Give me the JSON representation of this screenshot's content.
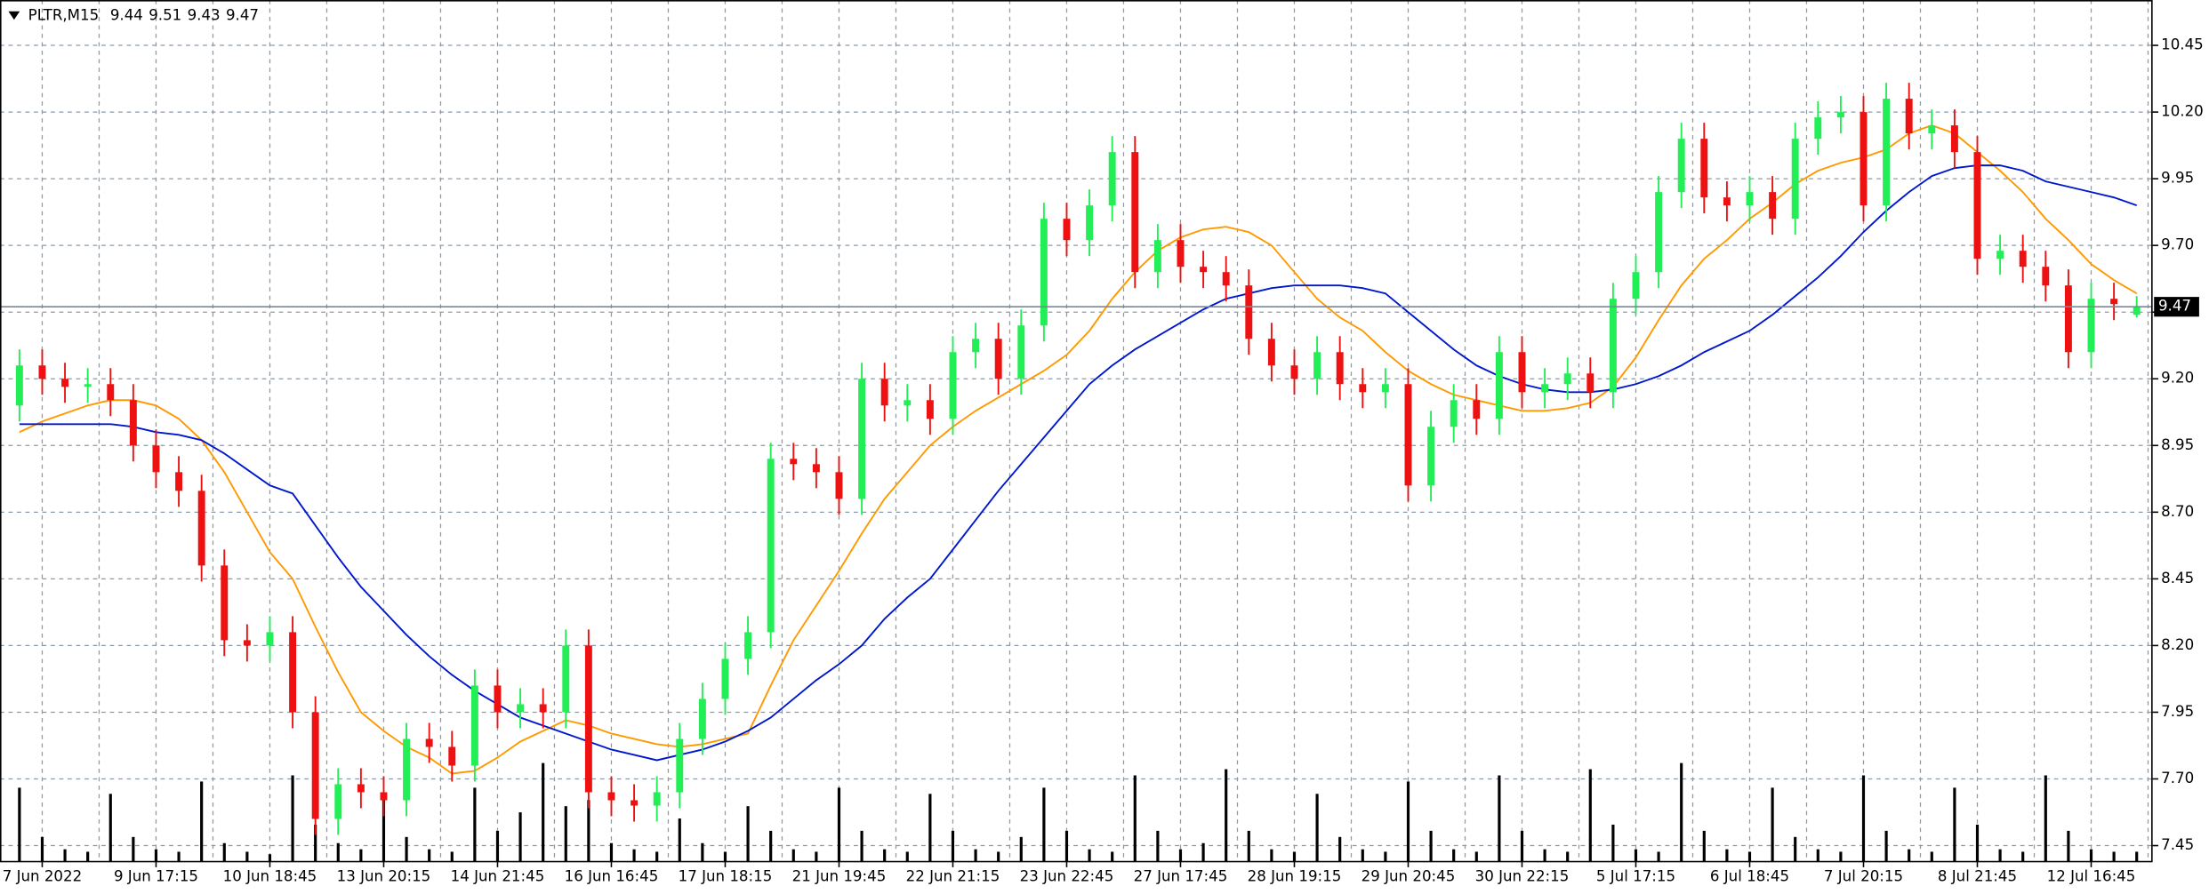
{
  "chart_data": {
    "type": "candlestick",
    "title": "PLTR,M15",
    "categories": [
      null,
      "7 Jun 2022",
      null,
      null,
      null,
      null,
      "9 Jun 17:15",
      null,
      null,
      null,
      null,
      "10 Jun 18:45",
      null,
      null,
      null,
      null,
      "13 Jun 20:15",
      null,
      null,
      null,
      null,
      "14 Jun 21:45",
      null,
      null,
      null,
      null,
      "16 Jun 16:45",
      null,
      null,
      null,
      null,
      "17 Jun 18:15",
      null,
      null,
      null,
      null,
      "21 Jun 19:45",
      null,
      null,
      null,
      null,
      "22 Jun 21:15",
      null,
      null,
      null,
      null,
      "23 Jun 22:45",
      null,
      null,
      null,
      null,
      "27 Jun 17:45",
      null,
      null,
      null,
      null,
      "28 Jun 19:15",
      null,
      null,
      null,
      null,
      "29 Jun 20:45",
      null,
      null,
      null,
      null,
      "30 Jun 22:15",
      null,
      null,
      null,
      null,
      "5 Jul 17:15",
      null,
      null,
      null,
      null,
      "6 Jul 18:45",
      null,
      null,
      null,
      null,
      "7 Jul 20:15",
      null,
      null,
      null,
      null,
      "8 Jul 21:45",
      null,
      null,
      null,
      null,
      "12 Jul 16:45",
      null,
      null
    ],
    "open": [
      9.1,
      9.25,
      9.2,
      9.17,
      9.18,
      9.12,
      8.95,
      8.85,
      8.78,
      8.5,
      8.22,
      8.2,
      8.25,
      7.95,
      7.55,
      7.68,
      7.65,
      7.62,
      7.85,
      7.82,
      7.75,
      8.05,
      7.95,
      7.98,
      7.95,
      8.2,
      7.65,
      7.62,
      7.6,
      7.65,
      7.85,
      8.0,
      8.15,
      8.25,
      8.9,
      8.88,
      8.85,
      8.75,
      9.2,
      9.1,
      9.12,
      9.05,
      9.3,
      9.35,
      9.2,
      9.4,
      9.8,
      9.72,
      9.85,
      10.05,
      9.6,
      9.72,
      9.62,
      9.6,
      9.55,
      9.35,
      9.25,
      9.2,
      9.3,
      9.18,
      9.15,
      9.18,
      8.8,
      9.02,
      9.12,
      9.05,
      9.3,
      9.15,
      9.18,
      9.22,
      9.15,
      9.5,
      9.6,
      9.9,
      10.1,
      9.88,
      9.85,
      9.9,
      9.8,
      10.1,
      10.18,
      10.2,
      9.85,
      10.25,
      10.12,
      10.15,
      10.05,
      9.65,
      9.68,
      9.62,
      9.55,
      9.3,
      9.5,
      9.44
    ],
    "high": [
      9.31,
      9.31,
      9.26,
      9.24,
      9.24,
      9.18,
      9.01,
      8.91,
      8.84,
      8.56,
      8.28,
      8.31,
      8.31,
      8.01,
      7.74,
      7.74,
      7.71,
      7.91,
      7.91,
      7.88,
      8.11,
      8.11,
      8.04,
      8.04,
      8.26,
      8.26,
      7.71,
      7.68,
      7.71,
      7.91,
      8.06,
      8.21,
      8.31,
      8.96,
      8.96,
      8.94,
      8.91,
      9.26,
      9.26,
      9.18,
      9.18,
      9.36,
      9.41,
      9.41,
      9.46,
      9.86,
      9.86,
      9.91,
      10.11,
      10.11,
      9.78,
      9.78,
      9.68,
      9.66,
      9.61,
      9.41,
      9.31,
      9.36,
      9.36,
      9.24,
      9.24,
      9.24,
      9.08,
      9.18,
      9.18,
      9.36,
      9.36,
      9.24,
      9.28,
      9.28,
      9.56,
      9.66,
      9.96,
      10.16,
      10.16,
      9.94,
      9.96,
      9.96,
      10.16,
      10.24,
      10.26,
      10.26,
      10.31,
      10.31,
      10.21,
      10.21,
      10.11,
      9.74,
      9.74,
      9.68,
      9.61,
      9.56,
      9.56,
      9.51
    ],
    "low": [
      9.04,
      9.14,
      9.11,
      9.11,
      9.06,
      8.89,
      8.79,
      8.72,
      8.44,
      8.16,
      8.14,
      8.14,
      7.89,
      7.49,
      7.49,
      7.59,
      7.56,
      7.56,
      7.76,
      7.69,
      7.69,
      7.89,
      7.89,
      7.89,
      7.89,
      7.59,
      7.56,
      7.54,
      7.54,
      7.59,
      7.79,
      7.94,
      8.09,
      8.19,
      8.82,
      8.79,
      8.69,
      8.69,
      9.04,
      9.04,
      8.99,
      8.99,
      9.24,
      9.14,
      9.14,
      9.34,
      9.66,
      9.66,
      9.79,
      9.54,
      9.54,
      9.56,
      9.54,
      9.49,
      9.29,
      9.19,
      9.14,
      9.14,
      9.12,
      9.09,
      9.09,
      8.74,
      8.74,
      8.96,
      8.99,
      8.99,
      9.09,
      9.09,
      9.12,
      9.09,
      9.09,
      9.44,
      9.54,
      9.84,
      9.82,
      9.79,
      9.79,
      9.74,
      9.74,
      10.04,
      10.12,
      9.79,
      9.79,
      10.06,
      10.06,
      9.99,
      9.59,
      9.59,
      9.56,
      9.49,
      9.24,
      9.24,
      9.42,
      9.43
    ],
    "close": [
      9.25,
      9.2,
      9.17,
      9.18,
      9.12,
      8.95,
      8.85,
      8.78,
      8.5,
      8.22,
      8.2,
      8.25,
      7.95,
      7.55,
      7.68,
      7.65,
      7.62,
      7.85,
      7.82,
      7.75,
      8.05,
      7.95,
      7.98,
      7.95,
      8.2,
      7.65,
      7.62,
      7.6,
      7.65,
      7.85,
      8.0,
      8.15,
      8.25,
      8.9,
      8.88,
      8.85,
      8.75,
      9.2,
      9.1,
      9.12,
      9.05,
      9.3,
      9.35,
      9.2,
      9.4,
      9.8,
      9.72,
      9.85,
      10.05,
      9.6,
      9.72,
      9.62,
      9.6,
      9.55,
      9.35,
      9.25,
      9.2,
      9.3,
      9.18,
      9.15,
      9.18,
      8.8,
      9.02,
      9.12,
      9.05,
      9.3,
      9.15,
      9.18,
      9.22,
      9.15,
      9.5,
      9.6,
      9.9,
      10.1,
      9.88,
      9.85,
      9.9,
      9.8,
      10.1,
      10.18,
      10.2,
      9.85,
      10.25,
      10.12,
      10.15,
      10.05,
      9.65,
      9.68,
      9.62,
      9.55,
      9.3,
      9.5,
      9.48,
      9.47
    ],
    "volume": [
      60,
      20,
      10,
      8,
      55,
      20,
      10,
      8,
      65,
      15,
      8,
      6,
      70,
      30,
      15,
      10,
      55,
      20,
      10,
      8,
      60,
      25,
      40,
      80,
      45,
      50,
      15,
      10,
      8,
      35,
      15,
      8,
      45,
      25,
      10,
      8,
      60,
      25,
      10,
      8,
      55,
      25,
      10,
      8,
      20,
      60,
      25,
      10,
      8,
      70,
      25,
      10,
      15,
      75,
      25,
      10,
      8,
      55,
      20,
      10,
      8,
      65,
      25,
      10,
      8,
      70,
      25,
      10,
      8,
      75,
      30,
      10,
      8,
      80,
      25,
      10,
      8,
      60,
      20,
      10,
      8,
      70,
      25,
      10,
      8,
      60,
      30,
      10,
      8,
      70,
      25,
      10,
      8,
      8
    ],
    "moving_averages": [
      {
        "color": "#ff9900",
        "values": [
          9.0,
          9.04,
          9.07,
          9.1,
          9.12,
          9.12,
          9.1,
          9.05,
          8.97,
          8.85,
          8.7,
          8.55,
          8.45,
          8.27,
          8.1,
          7.95,
          7.88,
          7.82,
          7.78,
          7.72,
          7.73,
          7.78,
          7.84,
          7.88,
          7.92,
          7.9,
          7.87,
          7.85,
          7.83,
          7.82,
          7.83,
          7.85,
          7.87,
          8.05,
          8.22,
          8.35,
          8.48,
          8.62,
          8.75,
          8.85,
          8.95,
          9.02,
          9.08,
          9.13,
          9.18,
          9.23,
          9.29,
          9.38,
          9.5,
          9.6,
          9.68,
          9.73,
          9.76,
          9.77,
          9.75,
          9.7,
          9.6,
          9.5,
          9.43,
          9.38,
          9.3,
          9.23,
          9.18,
          9.14,
          9.12,
          9.1,
          9.08,
          9.08,
          9.09,
          9.11,
          9.17,
          9.28,
          9.42,
          9.55,
          9.65,
          9.72,
          9.8,
          9.86,
          9.93,
          9.98,
          10.01,
          10.03,
          10.06,
          10.12,
          10.15,
          10.12,
          10.05,
          9.98,
          9.9,
          9.8,
          9.72,
          9.63,
          9.57,
          9.52
        ]
      },
      {
        "color": "#0018cc",
        "values": [
          9.03,
          9.03,
          9.03,
          9.03,
          9.03,
          9.02,
          9.0,
          8.99,
          8.97,
          8.92,
          8.86,
          8.8,
          8.77,
          8.65,
          8.53,
          8.42,
          8.33,
          8.24,
          8.16,
          8.09,
          8.03,
          7.98,
          7.93,
          7.9,
          7.87,
          7.84,
          7.81,
          7.79,
          7.77,
          7.79,
          7.81,
          7.84,
          7.88,
          7.93,
          8.0,
          8.07,
          8.13,
          8.2,
          8.3,
          8.38,
          8.45,
          8.56,
          8.67,
          8.78,
          8.88,
          8.98,
          9.08,
          9.18,
          9.25,
          9.31,
          9.36,
          9.41,
          9.46,
          9.5,
          9.52,
          9.54,
          9.55,
          9.55,
          9.55,
          9.54,
          9.52,
          9.45,
          9.38,
          9.31,
          9.25,
          9.21,
          9.18,
          9.16,
          9.15,
          9.15,
          9.16,
          9.18,
          9.21,
          9.25,
          9.3,
          9.34,
          9.38,
          9.44,
          9.51,
          9.58,
          9.66,
          9.75,
          9.83,
          9.9,
          9.96,
          9.99,
          10.0,
          10.0,
          9.98,
          9.94,
          9.92,
          9.9,
          9.88,
          9.85
        ]
      }
    ],
    "up_color": "#22ee55",
    "down_color": "#ee1111",
    "volume_color": "#000000",
    "ylim": [
      7.39,
      10.62
    ],
    "yticks": [
      7.45,
      {
        "value": 7.7,
        "label": "7.70"
      },
      7.95,
      {
        "value": 8.2,
        "label": "8.20"
      },
      8.45,
      {
        "value": 8.7,
        "label": "8.70"
      },
      8.95,
      {
        "value": 9.2,
        "label": "9.20"
      },
      9.45,
      {
        "value": 9.7,
        "label": "9.70"
      },
      9.95,
      {
        "value": 10.2,
        "label": "10.20"
      },
      10.45
    ],
    "grid": true
  }
}
